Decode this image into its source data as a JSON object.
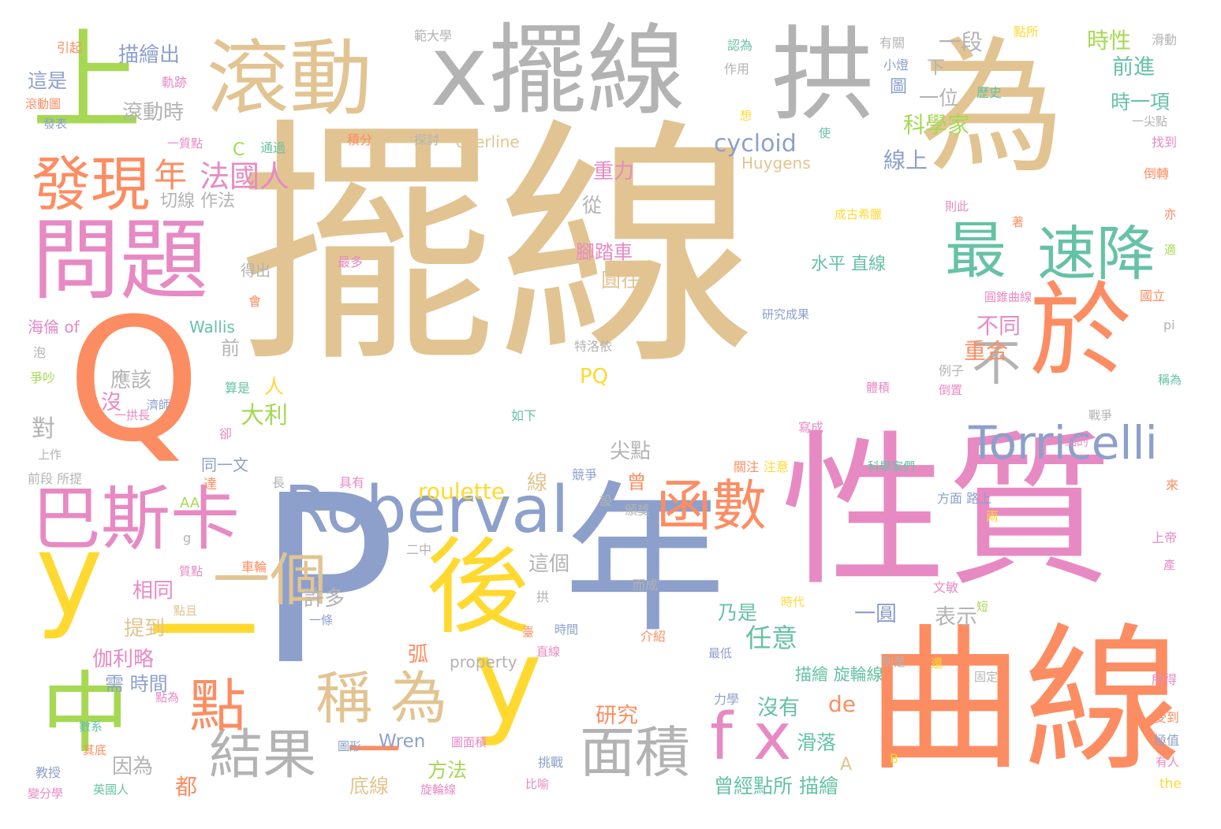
{
  "palette": {
    "tan": "#e2c492",
    "grey": "#b3b3b3",
    "orange": "#fc8d62",
    "pink": "#e78ac3",
    "blue": "#8da0cb",
    "green": "#a6d854",
    "yellow": "#ffd92f",
    "teal": "#66c2a5"
  },
  "words": [
    {
      "text": "擺線",
      "color": "tan"
    },
    {
      "text": "為",
      "color": "tan"
    },
    {
      "text": "x擺線",
      "color": "grey"
    },
    {
      "text": "拱",
      "color": "grey"
    },
    {
      "text": "滾動",
      "color": "tan"
    },
    {
      "text": "上",
      "color": "green"
    },
    {
      "text": "Q",
      "color": "orange"
    },
    {
      "text": "問題",
      "color": "pink"
    },
    {
      "text": "發現",
      "color": "orange"
    },
    {
      "text": "巴斯卡",
      "color": "pink"
    },
    {
      "text": "y",
      "color": "yellow"
    },
    {
      "text": "一",
      "color": "yellow"
    },
    {
      "text": "中",
      "color": "green"
    },
    {
      "text": "P",
      "color": "blue"
    },
    {
      "text": "年",
      "color": "blue"
    },
    {
      "text": "性質",
      "color": "pink"
    },
    {
      "text": "曲線",
      "color": "orange"
    },
    {
      "text": "於",
      "color": "orange"
    },
    {
      "text": "Roberval",
      "color": "blue"
    },
    {
      "text": "後",
      "color": "yellow"
    },
    {
      "text": "y",
      "color": "yellow"
    },
    {
      "text": "最",
      "color": "teal"
    },
    {
      "text": "速降",
      "color": "teal"
    },
    {
      "text": "Torricelli",
      "color": "blue"
    },
    {
      "text": "函數",
      "color": "orange"
    },
    {
      "text": "f x",
      "color": "pink"
    },
    {
      "text": "面積",
      "color": "grey"
    },
    {
      "text": "結果",
      "color": "grey"
    },
    {
      "text": "點",
      "color": "orange"
    },
    {
      "text": "稱 為",
      "color": "tan"
    },
    {
      "text": "一個",
      "color": "tan"
    },
    {
      "text": "不",
      "color": "grey"
    },
    {
      "text": "一",
      "color": "orange"
    },
    {
      "text": "cycloid",
      "color": "blue"
    },
    {
      "text": "年",
      "color": "orange"
    },
    {
      "text": "法國人",
      "color": "pink"
    },
    {
      "text": "一段",
      "color": "grey"
    },
    {
      "text": "時性",
      "color": "green"
    },
    {
      "text": "科學家",
      "color": "green"
    },
    {
      "text": "線上",
      "color": "blue"
    },
    {
      "text": "不同",
      "color": "pink"
    },
    {
      "text": "重合",
      "color": "orange"
    },
    {
      "text": "roulette",
      "color": "yellow"
    },
    {
      "text": "描繪出",
      "color": "blue"
    },
    {
      "text": "滾動時",
      "color": "grey"
    },
    {
      "text": "這是",
      "color": "blue"
    },
    {
      "text": "重力",
      "color": "pink"
    },
    {
      "text": "腳踏車",
      "color": "pink"
    },
    {
      "text": "水平 直線",
      "color": "teal"
    },
    {
      "text": "圓在",
      "color": "tan"
    },
    {
      "text": "一位",
      "color": "grey"
    },
    {
      "text": "前進",
      "color": "teal"
    },
    {
      "text": "時一項",
      "color": "teal"
    },
    {
      "text": "大利",
      "color": "green"
    },
    {
      "text": "人",
      "color": "yellow"
    },
    {
      "text": "應該",
      "color": "grey"
    },
    {
      "text": "對",
      "color": "grey"
    },
    {
      "text": "PQ",
      "color": "yellow"
    },
    {
      "text": "尖點",
      "color": "grey"
    },
    {
      "text": "線",
      "color": "tan"
    },
    {
      "text": "曾",
      "color": "orange"
    },
    {
      "text": "乃是",
      "color": "teal"
    },
    {
      "text": "任意",
      "color": "teal"
    },
    {
      "text": "相同",
      "color": "pink"
    },
    {
      "text": "提到",
      "color": "tan"
    },
    {
      "text": "伽利略",
      "color": "pink"
    },
    {
      "text": "需 時間",
      "color": "blue"
    },
    {
      "text": "研究",
      "color": "orange"
    },
    {
      "text": "沒有",
      "color": "teal"
    },
    {
      "text": "de",
      "color": "orange"
    },
    {
      "text": "滑落",
      "color": "teal"
    },
    {
      "text": "描繪 旋輪線",
      "color": "teal"
    },
    {
      "text": "曾經點所 描繪",
      "color": "teal"
    },
    {
      "text": "表示",
      "color": "grey"
    },
    {
      "text": "一圓",
      "color": "blue"
    },
    {
      "text": "許多",
      "color": "grey"
    },
    {
      "text": "這個",
      "color": "grey"
    },
    {
      "text": "方法",
      "color": "green"
    },
    {
      "text": "底線",
      "color": "tan"
    },
    {
      "text": "Wren",
      "color": "blue"
    },
    {
      "text": "因為",
      "color": "grey"
    },
    {
      "text": "都",
      "color": "orange"
    },
    {
      "text": "Huygens",
      "color": "tan"
    },
    {
      "text": "overline",
      "color": "tan"
    },
    {
      "text": "Wallis",
      "color": "teal"
    },
    {
      "text": "海倫 of",
      "color": "pink"
    },
    {
      "text": "property",
      "color": "grey"
    },
    {
      "text": "A",
      "color": "tan"
    },
    {
      "text": "AA",
      "color": "green"
    },
    {
      "text": "C",
      "color": "green"
    },
    {
      "text": "切線 作法",
      "color": "grey"
    },
    {
      "text": "得出",
      "color": "grey"
    },
    {
      "text": "前",
      "color": "grey"
    },
    {
      "text": "弧",
      "color": "orange"
    },
    {
      "text": "從",
      "color": "grey"
    },
    {
      "text": "下",
      "color": "grey"
    },
    {
      "text": "圖",
      "color": "blue"
    },
    {
      "text": "小燈",
      "color": "blue"
    },
    {
      "text": "有關",
      "color": "grey"
    },
    {
      "text": "點所",
      "color": "yellow"
    },
    {
      "text": "滑動",
      "color": "grey"
    },
    {
      "text": "範大學",
      "color": "grey"
    },
    {
      "text": "認為",
      "color": "teal"
    },
    {
      "text": "作用",
      "color": "grey"
    },
    {
      "text": "引起",
      "color": "orange"
    },
    {
      "text": "軌跡",
      "color": "pink"
    },
    {
      "text": "滾動圖",
      "color": "orange"
    },
    {
      "text": "發表",
      "color": "blue"
    },
    {
      "text": "一質點",
      "color": "pink"
    },
    {
      "text": "通過",
      "color": "teal"
    },
    {
      "text": "積分",
      "color": "orange"
    },
    {
      "text": "探討",
      "color": "grey"
    },
    {
      "text": "歷史",
      "color": "teal"
    },
    {
      "text": "一尖點",
      "color": "grey"
    },
    {
      "text": "找到",
      "color": "pink"
    },
    {
      "text": "倒轉",
      "color": "orange"
    },
    {
      "text": "成古希臘",
      "color": "yellow"
    },
    {
      "text": "則此",
      "color": "pink"
    },
    {
      "text": "研究成果",
      "color": "blue"
    },
    {
      "text": "圓錐曲線",
      "color": "pink"
    },
    {
      "text": "國立",
      "color": "orange"
    },
    {
      "text": "pi",
      "color": "grey"
    },
    {
      "text": "稱為",
      "color": "teal"
    },
    {
      "text": "戰爭",
      "color": "grey"
    },
    {
      "text": "點的",
      "color": "pink"
    },
    {
      "text": "體積",
      "color": "pink"
    },
    {
      "text": "科學家們",
      "color": "teal"
    },
    {
      "text": "寫成",
      "color": "pink"
    },
    {
      "text": "關注",
      "color": "orange"
    },
    {
      "text": "注意",
      "color": "yellow"
    },
    {
      "text": "特洛依",
      "color": "grey"
    },
    {
      "text": "如下",
      "color": "teal"
    },
    {
      "text": "例子",
      "color": "grey"
    },
    {
      "text": "倒置",
      "color": "pink"
    },
    {
      "text": "方面 路上",
      "color": "blue"
    },
    {
      "text": "競爭",
      "color": "blue"
    },
    {
      "text": "頒獎",
      "color": "grey"
    },
    {
      "text": "具有",
      "color": "pink"
    },
    {
      "text": "長",
      "color": "grey"
    },
    {
      "text": "達",
      "color": "orange"
    },
    {
      "text": "同一文",
      "color": "blue"
    },
    {
      "text": "前段 所提",
      "color": "grey"
    },
    {
      "text": "上作",
      "color": "grey"
    },
    {
      "text": "卻",
      "color": "pink"
    },
    {
      "text": "算是",
      "color": "teal"
    },
    {
      "text": "一拱長",
      "color": "pink"
    },
    {
      "text": "爭吵",
      "color": "green"
    },
    {
      "text": "泡",
      "color": "grey"
    },
    {
      "text": "會",
      "color": "orange"
    },
    {
      "text": "最多",
      "color": "pink"
    },
    {
      "text": "g",
      "color": "grey"
    },
    {
      "text": "質點",
      "color": "pink"
    },
    {
      "text": "車輪",
      "color": "orange"
    },
    {
      "text": "點且",
      "color": "tan"
    },
    {
      "text": "二中",
      "color": "grey"
    },
    {
      "text": "而成",
      "color": "grey"
    },
    {
      "text": "拱",
      "color": "grey"
    },
    {
      "text": "一條",
      "color": "blue"
    },
    {
      "text": "時間",
      "color": "blue"
    },
    {
      "text": "臺",
      "color": "orange"
    },
    {
      "text": "直線",
      "color": "pink"
    },
    {
      "text": "介紹",
      "color": "orange"
    },
    {
      "text": "最低",
      "color": "blue"
    },
    {
      "text": "時代",
      "color": "yellow"
    },
    {
      "text": "文敏",
      "color": "pink"
    },
    {
      "text": "短",
      "color": "green"
    },
    {
      "text": "還",
      "color": "yellow"
    },
    {
      "text": "則是",
      "color": "grey"
    },
    {
      "text": "固定",
      "color": "grey"
    },
    {
      "text": "所得",
      "color": "pink"
    },
    {
      "text": "受到",
      "color": "orange"
    },
    {
      "text": "極值",
      "color": "blue"
    },
    {
      "text": "有人",
      "color": "pink"
    },
    {
      "text": "the",
      "color": "yellow"
    },
    {
      "text": "上帝",
      "color": "pink"
    },
    {
      "text": "來",
      "color": "orange"
    },
    {
      "text": "兩",
      "color": "yellow"
    },
    {
      "text": "力學",
      "color": "blue"
    },
    {
      "text": "挑戰",
      "color": "blue"
    },
    {
      "text": "比喻",
      "color": "pink"
    },
    {
      "text": "旋輪線",
      "color": "pink"
    },
    {
      "text": "圖面積",
      "color": "pink"
    },
    {
      "text": "圖形",
      "color": "blue"
    },
    {
      "text": "英國人",
      "color": "teal"
    },
    {
      "text": "教授",
      "color": "blue"
    },
    {
      "text": "變分學",
      "color": "pink"
    },
    {
      "text": "其底",
      "color": "orange"
    },
    {
      "text": "數系",
      "color": "teal"
    },
    {
      "text": "點為",
      "color": "pink"
    },
    {
      "text": "設",
      "color": "grey"
    },
    {
      "text": "B",
      "color": "yellow"
    },
    {
      "text": "沒",
      "color": "pink"
    },
    {
      "text": "濟師",
      "color": "blue"
    },
    {
      "text": "想",
      "color": "yellow"
    },
    {
      "text": "使",
      "color": "teal"
    },
    {
      "text": "著",
      "color": "orange"
    },
    {
      "text": "亦",
      "color": "orange"
    },
    {
      "text": "產",
      "color": "pink"
    },
    {
      "text": "適",
      "color": "green"
    }
  ]
}
